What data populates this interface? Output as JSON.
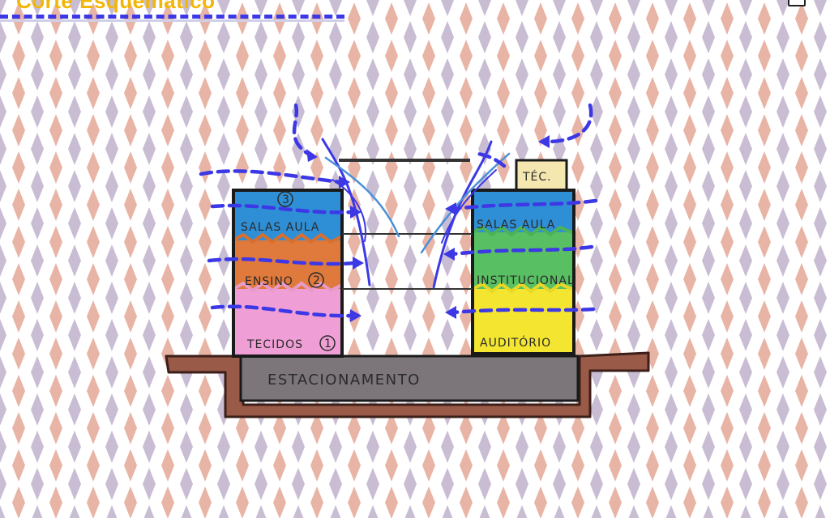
{
  "title": "Corte Esquemático",
  "building_left": {
    "floors": [
      {
        "label": "SALAS AULA",
        "number": "3",
        "color": "#2f8fd6"
      },
      {
        "label": "ENSINO",
        "number": "2",
        "color": "#e07a3c"
      },
      {
        "label": "TECIDOS",
        "number": "1",
        "color": "#ef9fd5"
      }
    ]
  },
  "building_right": {
    "roof_label": "TÉC.",
    "floors": [
      {
        "label": "SALAS AULA",
        "color": "#2f8fd6"
      },
      {
        "label": "INSTITUCIONAL",
        "color": "#58c062"
      },
      {
        "label": "AUDITÓRIO",
        "color": "#f3e530"
      }
    ]
  },
  "basement_label": "ESTACIONAMENTO",
  "colors": {
    "title": "#f2b705",
    "airflow": "#3c38e6",
    "pattern_pink": "#e8b4a6",
    "pattern_mauve": "#c9bdd3",
    "ground": "#9a5a48",
    "basement": "#7c767a",
    "roof_box": "#f5e7b0"
  }
}
